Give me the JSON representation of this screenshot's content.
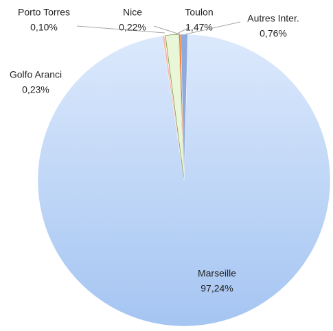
{
  "chart_data": {
    "type": "pie",
    "categories": [
      "Marseille",
      "Golfo Aranci",
      "Porto Torres",
      "Toulon",
      "Nice",
      "Autres Inter."
    ],
    "values": [
      97.24,
      0.23,
      0.1,
      1.47,
      0.22,
      0.76
    ],
    "value_labels": [
      "97,24%",
      "0,23%",
      "0,10%",
      "1,47%",
      "0,22%",
      "0,76%"
    ],
    "colors": [
      "#bcd5f7",
      "#f4b8b0",
      "#ffe699",
      "#eaf6d8",
      "#ed7d31",
      "#8faadc"
    ]
  }
}
